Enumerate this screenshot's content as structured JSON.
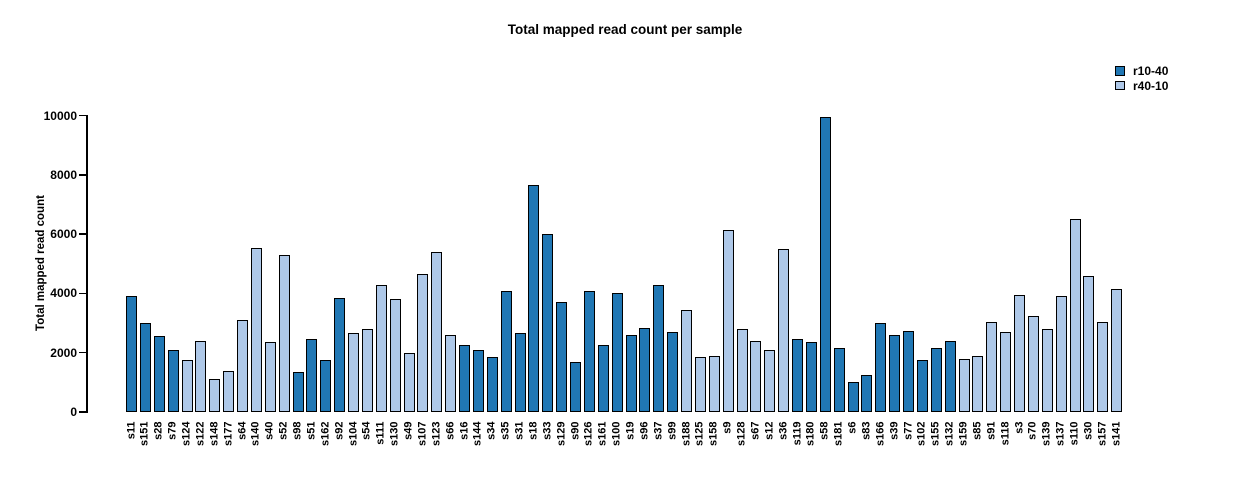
{
  "chart_data": {
    "type": "bar",
    "title": "Total mapped read count per sample",
    "ylabel": "Total mapped read count",
    "xlabel": "",
    "ylim": [
      0,
      10000
    ],
    "yticks": [
      0,
      2000,
      4000,
      6000,
      8000,
      10000
    ],
    "grid": false,
    "legend_position": "top-right",
    "bar_border_color": "#000000",
    "legend": [
      {
        "label": "r10-40",
        "color": "#2077b4"
      },
      {
        "label": "r40-10",
        "color": "#aec8e8"
      }
    ],
    "samples": [
      {
        "label": "s11",
        "group": "r10-40",
        "value": 3900
      },
      {
        "label": "s151",
        "group": "r10-40",
        "value": 3000
      },
      {
        "label": "s28",
        "group": "r10-40",
        "value": 2550
      },
      {
        "label": "s79",
        "group": "r10-40",
        "value": 2100
      },
      {
        "label": "s124",
        "group": "r40-10",
        "value": 1750
      },
      {
        "label": "s122",
        "group": "r40-10",
        "value": 2400
      },
      {
        "label": "s148",
        "group": "r40-10",
        "value": 1100
      },
      {
        "label": "s177",
        "group": "r40-10",
        "value": 1400
      },
      {
        "label": "s64",
        "group": "r40-10",
        "value": 3100
      },
      {
        "label": "s140",
        "group": "r40-10",
        "value": 5550
      },
      {
        "label": "s40",
        "group": "r40-10",
        "value": 2350
      },
      {
        "label": "s52",
        "group": "r40-10",
        "value": 5300
      },
      {
        "label": "s98",
        "group": "r10-40",
        "value": 1350
      },
      {
        "label": "s51",
        "group": "r10-40",
        "value": 2450
      },
      {
        "label": "s162",
        "group": "r10-40",
        "value": 1750
      },
      {
        "label": "s92",
        "group": "r10-40",
        "value": 3850
      },
      {
        "label": "s104",
        "group": "r40-10",
        "value": 2650
      },
      {
        "label": "s54",
        "group": "r40-10",
        "value": 2800
      },
      {
        "label": "s111",
        "group": "r40-10",
        "value": 4300
      },
      {
        "label": "s130",
        "group": "r40-10",
        "value": 3800
      },
      {
        "label": "s49",
        "group": "r40-10",
        "value": 2000
      },
      {
        "label": "s107",
        "group": "r40-10",
        "value": 4650
      },
      {
        "label": "s123",
        "group": "r40-10",
        "value": 5400
      },
      {
        "label": "s66",
        "group": "r40-10",
        "value": 2600
      },
      {
        "label": "s16",
        "group": "r10-40",
        "value": 2250
      },
      {
        "label": "s144",
        "group": "r10-40",
        "value": 2100
      },
      {
        "label": "s34",
        "group": "r10-40",
        "value": 1850
      },
      {
        "label": "s35",
        "group": "r10-40",
        "value": 4100
      },
      {
        "label": "s31",
        "group": "r10-40",
        "value": 2650
      },
      {
        "label": "s18",
        "group": "r10-40",
        "value": 7650
      },
      {
        "label": "s33",
        "group": "r10-40",
        "value": 6000
      },
      {
        "label": "s129",
        "group": "r10-40",
        "value": 3700
      },
      {
        "label": "s90",
        "group": "r10-40",
        "value": 1700
      },
      {
        "label": "s126",
        "group": "r10-40",
        "value": 4100
      },
      {
        "label": "s161",
        "group": "r10-40",
        "value": 2250
      },
      {
        "label": "s100",
        "group": "r10-40",
        "value": 4000
      },
      {
        "label": "s19",
        "group": "r10-40",
        "value": 2600
      },
      {
        "label": "s96",
        "group": "r10-40",
        "value": 2850
      },
      {
        "label": "s37",
        "group": "r10-40",
        "value": 4300
      },
      {
        "label": "s99",
        "group": "r10-40",
        "value": 2700
      },
      {
        "label": "s188",
        "group": "r40-10",
        "value": 3450
      },
      {
        "label": "s125",
        "group": "r40-10",
        "value": 1850
      },
      {
        "label": "s158",
        "group": "r40-10",
        "value": 1900
      },
      {
        "label": "s9",
        "group": "r40-10",
        "value": 6150
      },
      {
        "label": "s128",
        "group": "r40-10",
        "value": 2800
      },
      {
        "label": "s67",
        "group": "r40-10",
        "value": 2400
      },
      {
        "label": "s12",
        "group": "r40-10",
        "value": 2100
      },
      {
        "label": "s36",
        "group": "r40-10",
        "value": 5500
      },
      {
        "label": "s119",
        "group": "r10-40",
        "value": 2450
      },
      {
        "label": "s180",
        "group": "r10-40",
        "value": 2350
      },
      {
        "label": "s58",
        "group": "r10-40",
        "value": 9950
      },
      {
        "label": "s181",
        "group": "r10-40",
        "value": 2150
      },
      {
        "label": "s6",
        "group": "r10-40",
        "value": 1000
      },
      {
        "label": "s83",
        "group": "r10-40",
        "value": 1250
      },
      {
        "label": "s166",
        "group": "r10-40",
        "value": 3000
      },
      {
        "label": "s39",
        "group": "r10-40",
        "value": 2600
      },
      {
        "label": "s77",
        "group": "r10-40",
        "value": 2750
      },
      {
        "label": "s102",
        "group": "r10-40",
        "value": 1750
      },
      {
        "label": "s155",
        "group": "r10-40",
        "value": 2150
      },
      {
        "label": "s132",
        "group": "r10-40",
        "value": 2400
      },
      {
        "label": "s159",
        "group": "r40-10",
        "value": 1800
      },
      {
        "label": "s85",
        "group": "r40-10",
        "value": 1900
      },
      {
        "label": "s91",
        "group": "r40-10",
        "value": 3050
      },
      {
        "label": "s118",
        "group": "r40-10",
        "value": 2700
      },
      {
        "label": "s3",
        "group": "r40-10",
        "value": 3950
      },
      {
        "label": "s70",
        "group": "r40-10",
        "value": 3250
      },
      {
        "label": "s139",
        "group": "r40-10",
        "value": 2800
      },
      {
        "label": "s137",
        "group": "r40-10",
        "value": 3900
      },
      {
        "label": "s110",
        "group": "r40-10",
        "value": 6500
      },
      {
        "label": "s30",
        "group": "r40-10",
        "value": 4600
      },
      {
        "label": "s157",
        "group": "r40-10",
        "value": 3050
      },
      {
        "label": "s141",
        "group": "r40-10",
        "value": 4150
      }
    ]
  }
}
